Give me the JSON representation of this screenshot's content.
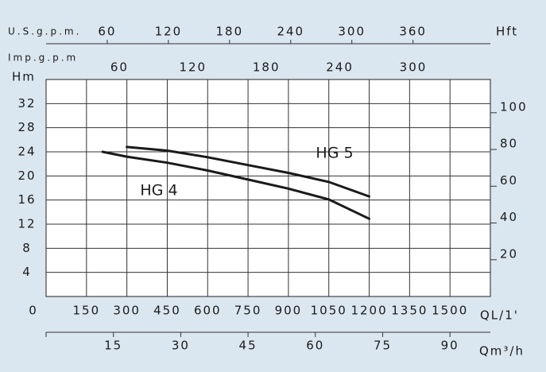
{
  "chart_data": {
    "type": "line",
    "x_label": "QL/1'",
    "xlim": [
      0,
      1650
    ],
    "xticks": [
      0,
      150,
      300,
      450,
      600,
      750,
      900,
      1050,
      1200,
      1350,
      1500
    ],
    "y_label": "Hm",
    "ylim": [
      0,
      36
    ],
    "yticks": [
      4,
      8,
      12,
      16,
      20,
      24,
      28,
      32
    ],
    "y2_label": "Hft",
    "y2lim": [
      0,
      118.1
    ],
    "y2ticks": [
      20,
      40,
      60,
      80,
      100
    ],
    "grid": true,
    "secondary_x_axes": [
      {
        "label": "U.S.g.p.m.",
        "position": "top",
        "lim": [
          0,
          435.9
        ],
        "ticks": [
          60,
          120,
          180,
          240,
          300,
          360
        ]
      },
      {
        "label": "Imp.g.p.m",
        "position": "top",
        "lim": [
          0,
          363
        ],
        "ticks": [
          60,
          120,
          180,
          240,
          300
        ]
      },
      {
        "label": "Qm³/h",
        "position": "bottom",
        "lim": [
          0,
          99
        ],
        "ticks": [
          15,
          30,
          45,
          60,
          75,
          90
        ]
      }
    ],
    "series": [
      {
        "name": "HG 4",
        "color": "#1a1a1a",
        "x": [
          210,
          300,
          450,
          600,
          750,
          900,
          1050,
          1200
        ],
        "values": [
          24,
          23.2,
          22.2,
          20.9,
          19.4,
          17.9,
          16.1,
          12.9
        ]
      },
      {
        "name": "HG 5",
        "color": "#1a1a1a",
        "x": [
          300,
          450,
          600,
          750,
          900,
          1050,
          1200
        ],
        "values": [
          24.8,
          24.2,
          23.1,
          21.8,
          20.5,
          19.0,
          16.6
        ]
      }
    ]
  }
}
